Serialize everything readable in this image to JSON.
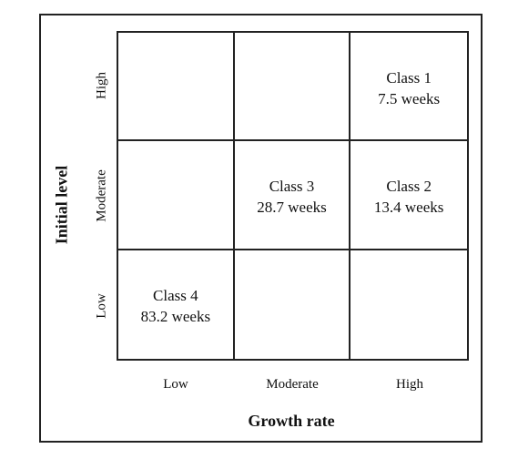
{
  "diagram": {
    "y_axis": {
      "label": "Initial level",
      "ticks": [
        "High",
        "Moderate",
        "Low"
      ]
    },
    "x_axis": {
      "label": "Growth rate",
      "ticks": [
        "Low",
        "Moderate",
        "High"
      ]
    },
    "cells": {
      "high_high": {
        "title": "Class 1",
        "value": "7.5 weeks"
      },
      "moderate_high": {
        "title": "Class 2",
        "value": "13.4 weeks"
      },
      "moderate_moderate": {
        "title": "Class 3",
        "value": "28.7 weeks"
      },
      "low_low": {
        "title": "Class 4",
        "value": "83.2 weeks"
      }
    }
  }
}
